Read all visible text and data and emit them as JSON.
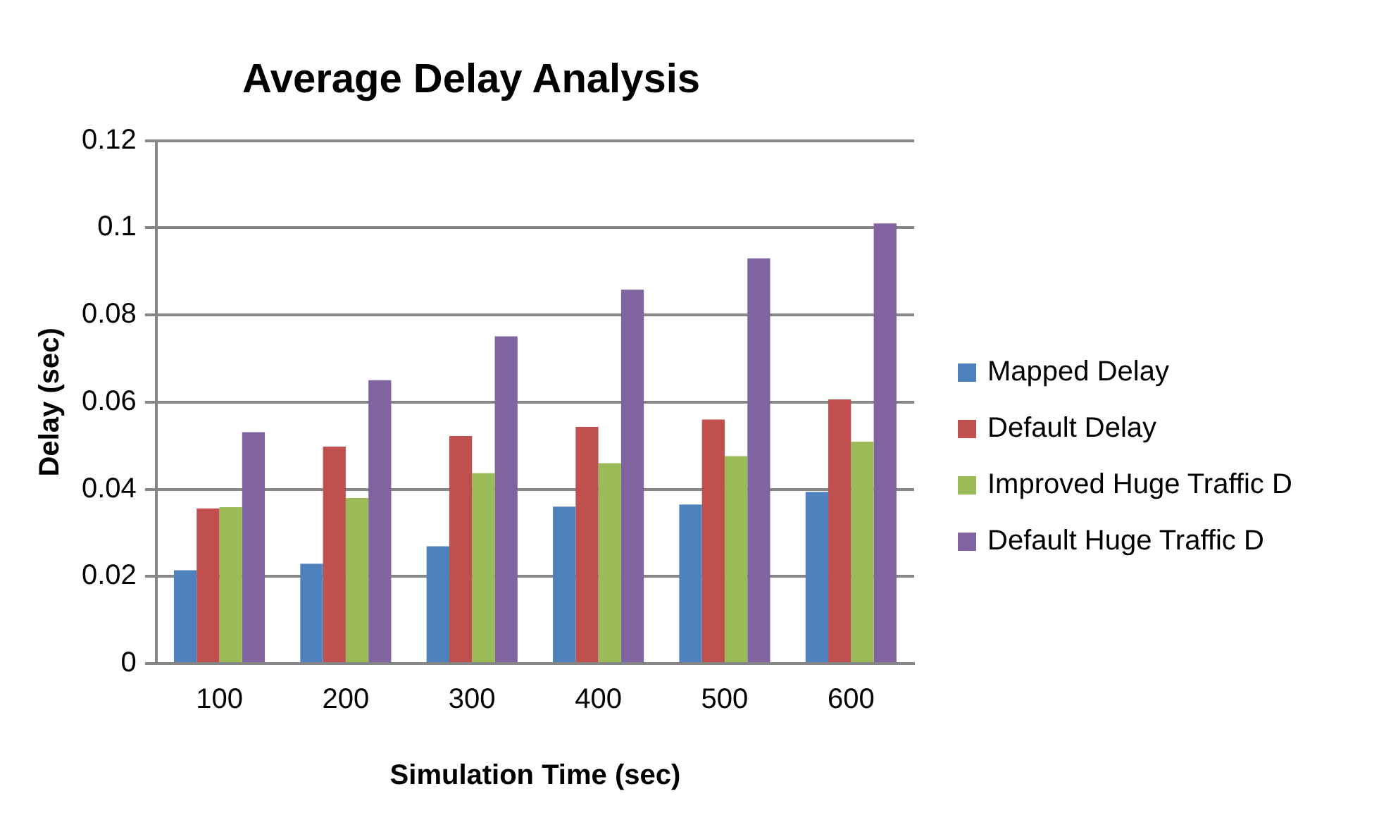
{
  "chart_data": {
    "type": "bar",
    "title": "Average Delay Analysis",
    "xlabel": "Simulation Time (sec)",
    "ylabel": "Delay (sec)",
    "categories": [
      "100",
      "200",
      "300",
      "400",
      "500",
      "600"
    ],
    "series": [
      {
        "name": "Mapped Delay",
        "color": "#4f81bd",
        "values": [
          0.0214,
          0.0229,
          0.0269,
          0.036,
          0.0365,
          0.0394
        ]
      },
      {
        "name": "Default Delay",
        "color": "#c0504d",
        "values": [
          0.0356,
          0.0498,
          0.0522,
          0.0543,
          0.056,
          0.0606
        ]
      },
      {
        "name": "Improved Huge Traffic D",
        "color": "#9bbb59",
        "values": [
          0.0359,
          0.038,
          0.0437,
          0.046,
          0.0476,
          0.0509
        ]
      },
      {
        "name": "Default Huge Traffic D",
        "color": "#8064a2",
        "values": [
          0.0531,
          0.065,
          0.0751,
          0.0858,
          0.093,
          0.101
        ]
      }
    ],
    "ylim": [
      0,
      0.12
    ],
    "yticks": [
      0,
      0.02,
      0.04,
      0.06,
      0.08,
      0.1,
      0.12
    ],
    "grid": "y",
    "legend": "right"
  }
}
